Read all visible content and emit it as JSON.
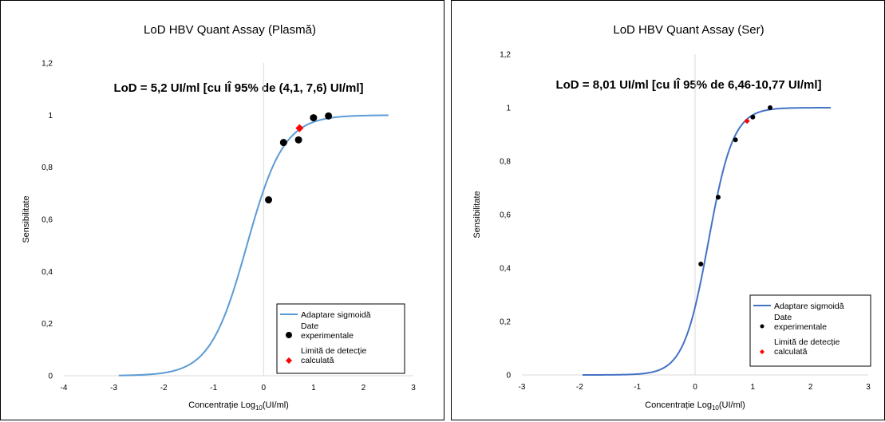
{
  "chart_data": [
    {
      "type": "scatter",
      "title": "LoD HBV Quant Assay (Plasmă)",
      "annotation": "LoD = 5,2 UI/ml [cu IÎ 95% de (4,1, 7,6) UI/ml]",
      "xlabel_main": "Concentrație Log",
      "xlabel_sub": "10",
      "xlabel_unit": "(UI/ml)",
      "ylabel": "Sensibilitate",
      "xlim": [
        -4,
        3
      ],
      "ylim": [
        0,
        1.2
      ],
      "xticks": [
        -4,
        -3,
        -2,
        -1,
        0,
        1,
        2,
        3
      ],
      "xtick_labels": [
        "-4",
        "-3",
        "-2",
        "-1",
        "0",
        "1",
        "2",
        "3"
      ],
      "yticks": [
        0,
        0.2,
        0.4,
        0.6,
        0.8,
        1,
        1.2
      ],
      "ytick_labels": [
        "0",
        "0,2",
        "0,4",
        "0,6",
        "0,8",
        "1",
        "1,2"
      ],
      "grid": false,
      "legend_position": "bottom-right",
      "series": [
        {
          "name": "Adaptare sigmoidă",
          "kind": "line",
          "color": "#5b9bd5",
          "x_range": [
            -2.9,
            2.5
          ],
          "sigmoid": {
            "x0": -0.335,
            "scale": 0.37
          }
        },
        {
          "name_line1": "Date",
          "name_line2": "experimentale",
          "kind": "points",
          "color": "#000000",
          "x": [
            0.1,
            0.4,
            0.7,
            1.0,
            1.3
          ],
          "y": [
            0.675,
            0.895,
            0.905,
            0.99,
            0.997
          ]
        },
        {
          "name_line1": "Limită de detecție",
          "name_line2": "calculată",
          "kind": "diamond",
          "color": "#ff0000",
          "x": [
            0.72
          ],
          "y": [
            0.95
          ]
        }
      ]
    },
    {
      "type": "scatter",
      "title": "LoD HBV Quant Assay (Ser)",
      "annotation": "LoD = 8,01 UI/ml [cu IÎ 95% de 6,46-10,77 UI/ml]",
      "xlabel_main": "Concentrație Log",
      "xlabel_sub": "10",
      "xlabel_unit": "(UI/ml)",
      "ylabel": "Sensibilitate",
      "xlim": [
        -3,
        3
      ],
      "ylim": [
        0,
        1.2
      ],
      "xticks": [
        -3,
        -2,
        -1,
        0,
        1,
        2,
        3
      ],
      "xtick_labels": [
        "-3",
        "-2",
        "-1",
        "0",
        "1",
        "2",
        "3"
      ],
      "yticks": [
        0,
        0.2,
        0.4,
        0.6,
        0.8,
        1,
        1.2
      ],
      "ytick_labels": [
        "0",
        "0,2",
        "0,4",
        "0,6",
        "0,8",
        "1",
        "1,2"
      ],
      "grid": false,
      "legend_position": "bottom-right",
      "series": [
        {
          "name": "Adaptare sigmoidă",
          "kind": "line",
          "color": "#4472c4",
          "x_range": [
            -1.95,
            2.35
          ],
          "sigmoid": {
            "x0": 0.232,
            "scale": 0.215
          }
        },
        {
          "name_line1": "Date",
          "name_line2": "experimentale",
          "kind": "points",
          "color": "#000000",
          "x": [
            0.1,
            0.4,
            0.7,
            1.0,
            1.3
          ],
          "y": [
            0.415,
            0.665,
            0.88,
            0.965,
            1.0
          ]
        },
        {
          "name_line1": "Limită de detecție",
          "name_line2": "calculată",
          "kind": "diamond",
          "color": "#ff0000",
          "x": [
            0.9
          ],
          "y": [
            0.95
          ]
        }
      ]
    }
  ]
}
